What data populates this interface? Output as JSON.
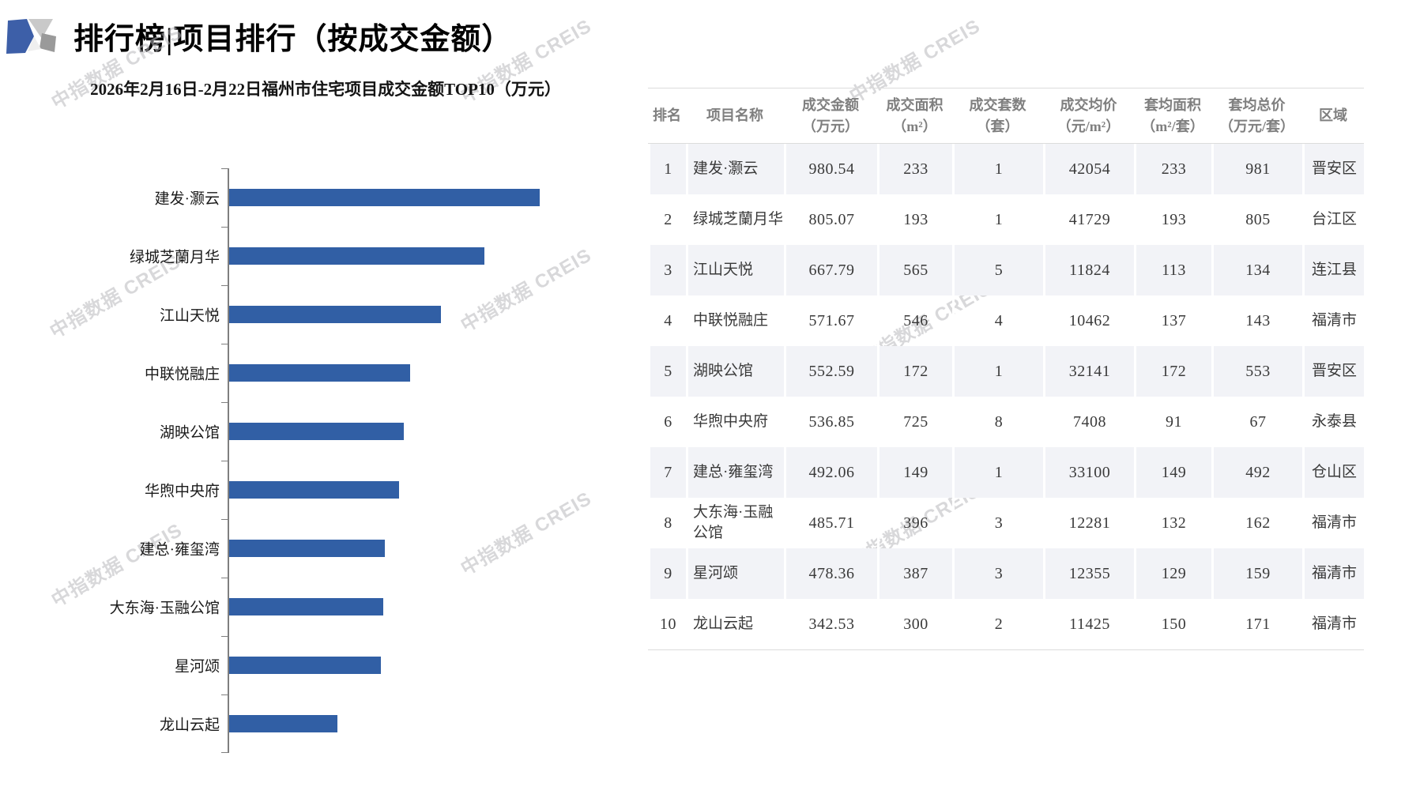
{
  "page": {
    "title": "排行榜|项目排行（按成交金额）"
  },
  "watermark": {
    "text": "中指数据 CREIS"
  },
  "chart_data": {
    "type": "bar",
    "orientation": "horizontal",
    "title": "2026年2月16日-2月22日福州市住宅项目成交金额TOP10（万元）",
    "categories": [
      "建发·灏云",
      "绿城芝蘭月华",
      "江山天悦",
      "中联悦融庄",
      "湖映公馆",
      "华煦中央府",
      "建总·雍玺湾",
      "大东海·玉融公馆",
      "星河颂",
      "龙山云起"
    ],
    "values": [
      980.54,
      805.07,
      667.79,
      571.67,
      552.59,
      536.85,
      492.06,
      485.71,
      478.36,
      342.53
    ],
    "xlabel": "",
    "ylabel": "",
    "xlim": [
      0,
      1000
    ],
    "grid": false,
    "legend": "none",
    "bar_color": "#315FA5",
    "axis_color": "#7f7f7f"
  },
  "table": {
    "columns": [
      {
        "key": "rank",
        "label": "排名"
      },
      {
        "key": "name",
        "label": "项目名称"
      },
      {
        "key": "amount",
        "label": "成交金额\n（万元）"
      },
      {
        "key": "area",
        "label": "成交面积\n（m²）"
      },
      {
        "key": "units",
        "label": "成交套数\n（套）"
      },
      {
        "key": "avg_price",
        "label": "成交均价\n（元/m²）"
      },
      {
        "key": "avg_area",
        "label": "套均面积\n（m²/套）"
      },
      {
        "key": "avg_total",
        "label": "套均总价\n（万元/套）"
      },
      {
        "key": "district",
        "label": "区域"
      }
    ],
    "rows": [
      {
        "rank": "1",
        "name": "建发·灏云",
        "amount": "980.54",
        "area": "233",
        "units": "1",
        "avg_price": "42054",
        "avg_area": "233",
        "avg_total": "981",
        "district": "晋安区"
      },
      {
        "rank": "2",
        "name": "绿城芝蘭月华",
        "amount": "805.07",
        "area": "193",
        "units": "1",
        "avg_price": "41729",
        "avg_area": "193",
        "avg_total": "805",
        "district": "台江区"
      },
      {
        "rank": "3",
        "name": "江山天悦",
        "amount": "667.79",
        "area": "565",
        "units": "5",
        "avg_price": "11824",
        "avg_area": "113",
        "avg_total": "134",
        "district": "连江县"
      },
      {
        "rank": "4",
        "name": "中联悦融庄",
        "amount": "571.67",
        "area": "546",
        "units": "4",
        "avg_price": "10462",
        "avg_area": "137",
        "avg_total": "143",
        "district": "福清市"
      },
      {
        "rank": "5",
        "name": "湖映公馆",
        "amount": "552.59",
        "area": "172",
        "units": "1",
        "avg_price": "32141",
        "avg_area": "172",
        "avg_total": "553",
        "district": "晋安区"
      },
      {
        "rank": "6",
        "name": "华煦中央府",
        "amount": "536.85",
        "area": "725",
        "units": "8",
        "avg_price": "7408",
        "avg_area": "91",
        "avg_total": "67",
        "district": "永泰县"
      },
      {
        "rank": "7",
        "name": "建总·雍玺湾",
        "amount": "492.06",
        "area": "149",
        "units": "1",
        "avg_price": "33100",
        "avg_area": "149",
        "avg_total": "492",
        "district": "仓山区"
      },
      {
        "rank": "8",
        "name": "大东海·玉融公馆",
        "amount": "485.71",
        "area": "396",
        "units": "3",
        "avg_price": "12281",
        "avg_area": "132",
        "avg_total": "162",
        "district": "福清市"
      },
      {
        "rank": "9",
        "name": "星河颂",
        "amount": "478.36",
        "area": "387",
        "units": "3",
        "avg_price": "12355",
        "avg_area": "129",
        "avg_total": "159",
        "district": "福清市"
      },
      {
        "rank": "10",
        "name": "龙山云起",
        "amount": "342.53",
        "area": "300",
        "units": "2",
        "avg_price": "11425",
        "avg_area": "150",
        "avg_total": "171",
        "district": "福清市"
      }
    ]
  },
  "colors": {
    "stripe": "#f2f3f7",
    "line": "#dcdcdc",
    "logo_blue": "#3d5fa8",
    "logo_light_gray": "#c9c9c9",
    "logo_dark_gray": "#9a9a9a"
  }
}
